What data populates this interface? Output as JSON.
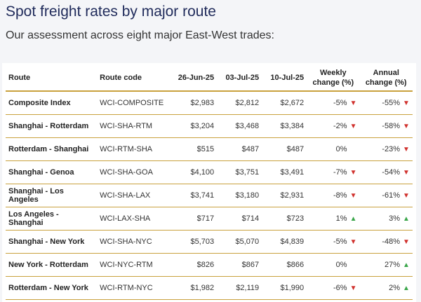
{
  "title": "Spot freight rates by major route",
  "subtitle": "Our assessment across eight major East-West trades:",
  "colors": {
    "down": "#d0312d",
    "up": "#3aa64a",
    "rule": "#c9a13d",
    "title": "#1f2a5a"
  },
  "table": {
    "headers": {
      "route": "Route",
      "code": "Route code",
      "d1": "26-Jun-25",
      "d2": "03-Jul-25",
      "d3": "10-Jul-25",
      "weekly": "Weekly change (%)",
      "annual": "Annual change (%)"
    },
    "rows": [
      {
        "route": "Composite Index",
        "code": "WCI-COMPOSITE",
        "d1": "$2,983",
        "d2": "$2,812",
        "d3": "$2,672",
        "weekly": "-5%",
        "weekly_dir": "▼",
        "annual": "-55%",
        "annual_dir": "▼"
      },
      {
        "route": "Shanghai - Rotterdam",
        "code": "WCI-SHA-RTM",
        "d1": "$3,204",
        "d2": "$3,468",
        "d3": "$3,384",
        "weekly": "-2%",
        "weekly_dir": "▼",
        "annual": "-58%",
        "annual_dir": "▼"
      },
      {
        "route": "Rotterdam - Shanghai",
        "code": "WCI-RTM-SHA",
        "d1": "$515",
        "d2": "$487",
        "d3": "$487",
        "weekly": "0%",
        "weekly_dir": "",
        "annual": "-23%",
        "annual_dir": "▼"
      },
      {
        "route": "Shanghai - Genoa",
        "code": "WCI-SHA-GOA",
        "d1": "$4,100",
        "d2": "$3,751",
        "d3": "$3,491",
        "weekly": "-7%",
        "weekly_dir": "▼",
        "annual": "-54%",
        "annual_dir": "▼"
      },
      {
        "route": "Shanghai - Los Angeles",
        "code": "WCI-SHA-LAX",
        "d1": "$3,741",
        "d2": "$3,180",
        "d3": "$2,931",
        "weekly": "-8%",
        "weekly_dir": "▼",
        "annual": "-61%",
        "annual_dir": "▼"
      },
      {
        "route": "Los Angeles - Shanghai",
        "code": "WCI-LAX-SHA",
        "d1": "$717",
        "d2": "$714",
        "d3": "$723",
        "weekly": "1%",
        "weekly_dir": "▲",
        "annual": "3%",
        "annual_dir": "▲"
      },
      {
        "route": "Shanghai - New York",
        "code": "WCI-SHA-NYC",
        "d1": "$5,703",
        "d2": "$5,070",
        "d3": "$4,839",
        "weekly": "-5%",
        "weekly_dir": "▼",
        "annual": "-48%",
        "annual_dir": "▼"
      },
      {
        "route": "New York - Rotterdam",
        "code": "WCI-NYC-RTM",
        "d1": "$826",
        "d2": "$867",
        "d3": "$866",
        "weekly": "0%",
        "weekly_dir": "",
        "annual": "27%",
        "annual_dir": "▲"
      },
      {
        "route": "Rotterdam - New York",
        "code": "WCI-RTM-NYC",
        "d1": "$1,982",
        "d2": "$2,119",
        "d3": "$1,990",
        "weekly": "-6%",
        "weekly_dir": "▼",
        "annual": "2%",
        "annual_dir": "▲"
      }
    ]
  }
}
